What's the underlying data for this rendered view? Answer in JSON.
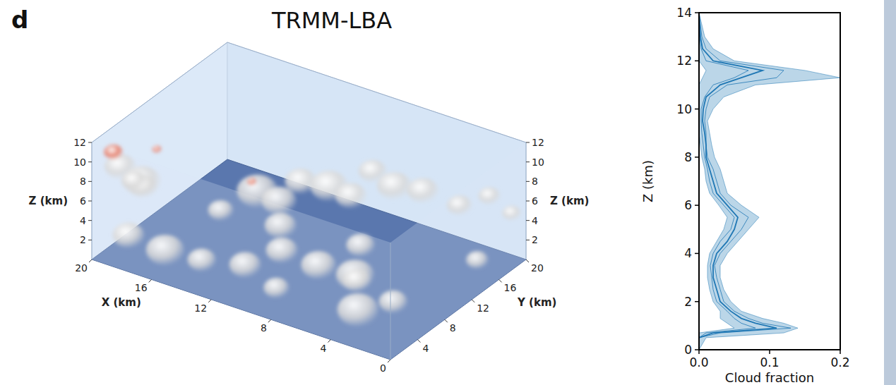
{
  "chart_data": [
    {
      "type": "volume",
      "panel": "d",
      "title": "TRMM-LBA",
      "xlabel": "X (km)",
      "ylabel": "Y (km)",
      "zlabel": "Z (km)",
      "xlim": [
        0,
        20
      ],
      "xticks": [
        0,
        4,
        8,
        12,
        16,
        20
      ],
      "ylim": [
        0,
        20
      ],
      "yticks": [
        4,
        8,
        12,
        16,
        20
      ],
      "zlim": [
        0,
        12
      ],
      "zticks": [
        2,
        4,
        6,
        8,
        10,
        12
      ],
      "series": [
        {
          "color": "#d9d9d9",
          "x": [
            19,
            18,
            17,
            19,
            18,
            16,
            14,
            13,
            12,
            11,
            10,
            9,
            8,
            7,
            6,
            4,
            2,
            10,
            8,
            6,
            5,
            4,
            3,
            12,
            9,
            7,
            11,
            15,
            1,
            0.5
          ],
          "y": [
            2,
            3,
            1,
            4,
            1,
            2,
            3,
            9,
            10,
            11,
            13,
            14,
            15,
            16,
            18,
            19,
            19,
            6,
            7,
            8,
            6,
            4,
            7,
            5,
            3,
            11,
            8,
            8,
            15,
            19
          ],
          "z": [
            9,
            7.5,
            8.5,
            6.5,
            3,
            2,
            1.5,
            6,
            5,
            7,
            6,
            5,
            7.5,
            6,
            5,
            4,
            6,
            3,
            2,
            1.5,
            2.5,
            1,
            0.8,
            1,
            1.2,
            2.5,
            4,
            3.5,
            2,
            5
          ],
          "size": [
            1.0,
            1.2,
            0.9,
            0.8,
            1.0,
            1.2,
            0.9,
            1.3,
            1.1,
            1.0,
            1.2,
            1.0,
            0.9,
            1.1,
            1.0,
            0.8,
            0.7,
            1.0,
            1.1,
            1.2,
            0.9,
            1.3,
            0.9,
            1.0,
            0.8,
            0.9,
            1.0,
            0.8,
            0.7,
            0.6
          ]
        },
        {
          "color": "#e8735a",
          "x": [
            19,
            17,
            12
          ],
          "y": [
            1,
            3,
            6
          ],
          "z": [
            11,
            11.3,
            9
          ],
          "size": [
            0.6,
            0.3,
            0.3
          ]
        }
      ]
    },
    {
      "type": "line",
      "xlabel": "Cloud fraction",
      "ylabel": "Z (km)",
      "xlim": [
        0,
        0.2
      ],
      "xticks": [
        {
          "value": 0,
          "label": "0.0"
        },
        {
          "value": 0.1,
          "label": "0.1"
        },
        {
          "value": 0.2,
          "label": "0.2"
        }
      ],
      "ylim": [
        0,
        14
      ],
      "yticks": [
        0,
        2,
        4,
        6,
        8,
        10,
        12,
        14
      ],
      "y": [
        0,
        0.5,
        0.7,
        0.9,
        1.1,
        1.3,
        1.6,
        2,
        2.5,
        3,
        3.5,
        4,
        4.5,
        5,
        5.5,
        6,
        6.5,
        7,
        7.5,
        8,
        8.5,
        9,
        9.5,
        10,
        10.5,
        11,
        11.3,
        11.6,
        12,
        12.5,
        13,
        14
      ],
      "band": {
        "color": "#1f77b4",
        "lower": [
          0,
          0,
          0,
          0.05,
          0.04,
          0.03,
          0.03,
          0.02,
          0.015,
          0.012,
          0.012,
          0.015,
          0.025,
          0.035,
          0.04,
          0.028,
          0.015,
          0.01,
          0.008,
          0.004,
          0.002,
          0,
          0,
          0,
          0,
          0,
          0.005,
          0.01,
          0,
          0,
          0,
          0
        ],
        "upper": [
          0,
          0.01,
          0.12,
          0.14,
          0.12,
          0.09,
          0.06,
          0.045,
          0.035,
          0.03,
          0.03,
          0.04,
          0.055,
          0.07,
          0.085,
          0.06,
          0.04,
          0.035,
          0.03,
          0.022,
          0.018,
          0.015,
          0.012,
          0.02,
          0.035,
          0.08,
          0.2,
          0.15,
          0.05,
          0.02,
          0.008,
          0
        ]
      },
      "series": [
        {
          "color": "#1f77b4",
          "values": [
            0,
            0,
            0.02,
            0.11,
            0.08,
            0.06,
            0.045,
            0.03,
            0.025,
            0.02,
            0.02,
            0.025,
            0.04,
            0.05,
            0.055,
            0.04,
            0.025,
            0.02,
            0.015,
            0.01,
            0.01,
            0.008,
            0.005,
            0.006,
            0.01,
            0.03,
            0.06,
            0.09,
            0.02,
            0.005,
            0.002,
            0
          ]
        },
        {
          "color": "#1f77b4",
          "values": [
            0,
            0,
            0.03,
            0.13,
            0.09,
            0.07,
            0.05,
            0.035,
            0.03,
            0.025,
            0.022,
            0.03,
            0.045,
            0.06,
            0.07,
            0.045,
            0.03,
            0.025,
            0.02,
            0.012,
            0.01,
            0.01,
            0.008,
            0.01,
            0.015,
            0.04,
            0.11,
            0.12,
            0.03,
            0.01,
            0.004,
            0
          ]
        },
        {
          "color": "#1f77b4",
          "values": [
            0,
            0,
            0.01,
            0.08,
            0.06,
            0.05,
            0.04,
            0.025,
            0.02,
            0.018,
            0.016,
            0.02,
            0.03,
            0.045,
            0.05,
            0.035,
            0.02,
            0.015,
            0.012,
            0.008,
            0.006,
            0.004,
            0.003,
            0.003,
            0.008,
            0.02,
            0.05,
            0.07,
            0.01,
            0.003,
            0.001,
            0
          ]
        }
      ]
    }
  ]
}
